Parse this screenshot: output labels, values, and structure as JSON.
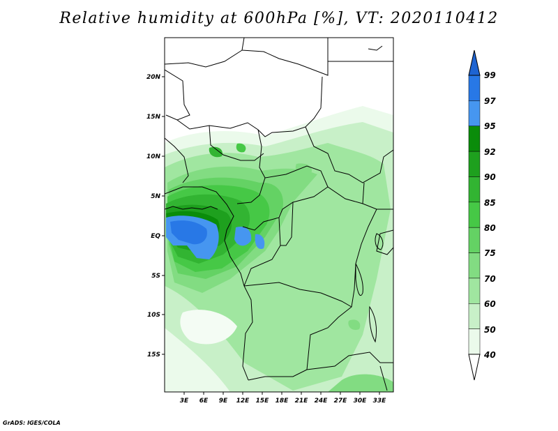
{
  "title": "Relative humidity at 600hPa [%], VT: 2020110412",
  "credit": "GrADS: IGES/COLA",
  "map": {
    "lat_ticks": [
      "20N",
      "15N",
      "10N",
      "5N",
      "EQ",
      "5S",
      "10S",
      "15S"
    ],
    "lon_ticks": [
      "3E",
      "6E",
      "9E",
      "12E",
      "15E",
      "18E",
      "21E",
      "24E",
      "27E",
      "30E",
      "33E"
    ]
  },
  "colorbar": {
    "labels": [
      "99",
      "97",
      "95",
      "92",
      "90",
      "85",
      "80",
      "75",
      "70",
      "60",
      "50",
      "40"
    ],
    "colors": [
      "#1e64d2",
      "#2878e6",
      "#4696f0",
      "#0a8c0a",
      "#1ea01e",
      "#32b432",
      "#46c846",
      "#64d264",
      "#82dc82",
      "#a0e6a0",
      "#c8f0c8",
      "#ebfaeb",
      "#ffffff"
    ]
  }
}
